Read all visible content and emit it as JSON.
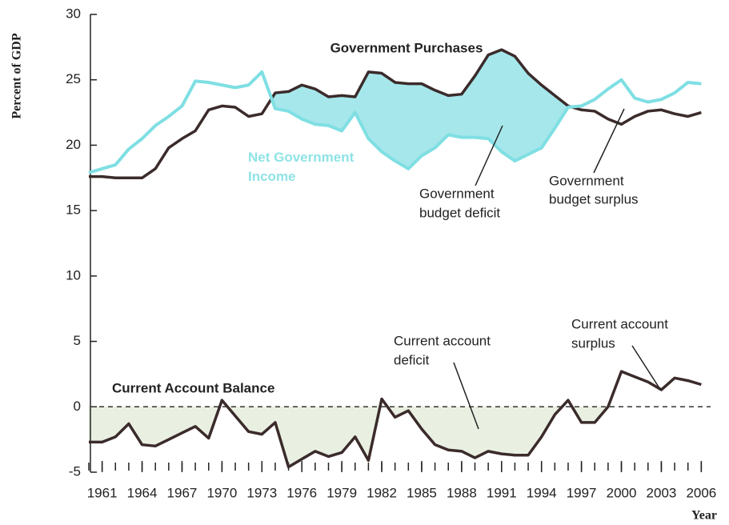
{
  "chart_data": {
    "type": "line",
    "y_axis_label": "Percent of GDP",
    "x_axis_label": "Year",
    "x": [
      1960,
      1961,
      1962,
      1963,
      1964,
      1965,
      1966,
      1967,
      1968,
      1969,
      1970,
      1971,
      1972,
      1973,
      1974,
      1975,
      1976,
      1977,
      1978,
      1979,
      1980,
      1981,
      1982,
      1983,
      1984,
      1985,
      1986,
      1987,
      1988,
      1989,
      1990,
      1991,
      1992,
      1993,
      1994,
      1995,
      1996,
      1997,
      1998,
      1999,
      2000,
      2001,
      2002,
      2003,
      2004,
      2005,
      2006
    ],
    "series": [
      {
        "name": "Government Purchases",
        "color": "#3b2b2b",
        "values": [
          17.6,
          17.6,
          17.5,
          17.5,
          17.5,
          18.2,
          19.8,
          20.5,
          21.1,
          22.7,
          23.0,
          22.9,
          22.2,
          22.4,
          24.0,
          24.1,
          24.6,
          24.3,
          23.7,
          23.8,
          23.7,
          25.6,
          25.5,
          24.8,
          24.7,
          24.7,
          24.2,
          23.8,
          23.9,
          25.3,
          26.9,
          27.3,
          26.8,
          25.5,
          24.6,
          23.8,
          23.0,
          22.7,
          22.6,
          22.0,
          21.6,
          22.2,
          22.6,
          22.7,
          22.4,
          22.2,
          22.5
        ]
      },
      {
        "name": "Net Government Income",
        "color": "#7fdfe3",
        "values": [
          17.9,
          18.2,
          18.5,
          19.7,
          20.5,
          21.5,
          22.2,
          23.0,
          24.9,
          24.8,
          24.6,
          24.4,
          24.6,
          25.6,
          22.8,
          22.6,
          22.0,
          21.6,
          21.5,
          21.1,
          22.5,
          20.5,
          19.5,
          18.8,
          18.2,
          19.2,
          19.8,
          20.8,
          20.6,
          20.6,
          20.5,
          19.5,
          18.8,
          19.3,
          19.8,
          21.3,
          22.9,
          23.0,
          23.5,
          24.3,
          25.0,
          23.6,
          23.3,
          23.5,
          24.0,
          24.8,
          24.7
        ]
      },
      {
        "name": "Current Account Balance",
        "color": "#3b2b2b",
        "values": [
          -2.7,
          -2.7,
          -2.3,
          -1.3,
          -2.9,
          -3.0,
          -2.5,
          -2.0,
          -1.5,
          -2.4,
          0.5,
          -0.7,
          -1.9,
          -2.1,
          -1.2,
          -4.6,
          -4.0,
          -3.4,
          -3.8,
          -3.5,
          -2.3,
          -4.1,
          0.6,
          -0.8,
          -0.3,
          -1.7,
          -2.9,
          -3.3,
          -3.4,
          -3.9,
          -3.4,
          -3.6,
          -3.7,
          -3.7,
          -2.3,
          -0.6,
          0.5,
          -1.2,
          -1.2,
          0.0,
          2.7,
          2.3,
          1.9,
          1.3,
          2.2,
          2.0,
          1.7
        ]
      }
    ],
    "deficit_fill_color": "#a6e7eb",
    "ca_fill_color": "#e9f0e2",
    "annotations": {
      "budget_deficit": [
        "Government",
        "budget deficit"
      ],
      "budget_surplus": [
        "Government",
        "budget surplus"
      ],
      "ca_deficit": [
        "Current account",
        "deficit"
      ],
      "ca_surplus": [
        "Current account",
        "surplus"
      ]
    },
    "xlim": [
      1960,
      2007
    ],
    "ylim": [
      -5,
      30
    ],
    "xticks": [
      1961,
      1964,
      1967,
      1970,
      1973,
      1976,
      1979,
      1982,
      1985,
      1988,
      1991,
      1994,
      1997,
      2000,
      2003,
      2006
    ],
    "yticks": [
      -5,
      0,
      5,
      10,
      15,
      20,
      25,
      30
    ]
  }
}
